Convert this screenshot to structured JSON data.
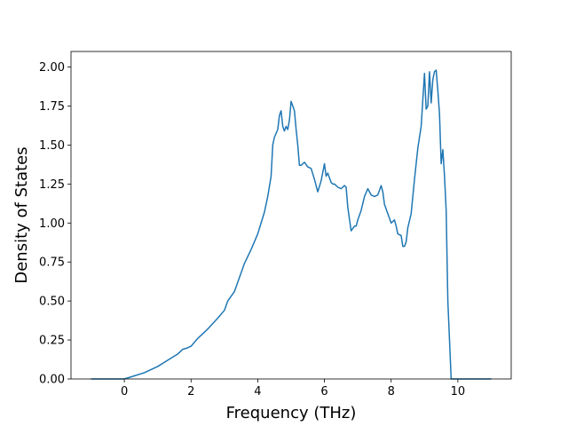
{
  "chart_data": {
    "type": "line",
    "title": "",
    "xlabel": "Frequency (THz)",
    "ylabel": "Density of States",
    "xlim": [
      -1.6,
      11.6
    ],
    "ylim": [
      0,
      2.1
    ],
    "x_ticks": [
      0,
      2,
      4,
      6,
      8,
      10
    ],
    "x_tick_labels": [
      "0",
      "2",
      "4",
      "6",
      "8",
      "10"
    ],
    "y_ticks": [
      0,
      0.25,
      0.5,
      0.75,
      1.0,
      1.25,
      1.5,
      1.75,
      2.0
    ],
    "y_tick_labels": [
      "0.00",
      "0.25",
      "0.50",
      "0.75",
      "1.00",
      "1.25",
      "1.50",
      "1.75",
      "2.00"
    ],
    "grid": false,
    "legend": "none",
    "line_color": "#1f77b4",
    "series": [
      {
        "x": [
          -1.0,
          0.0,
          0.3,
          0.6,
          1.0,
          1.3,
          1.6,
          1.75,
          1.9,
          2.0,
          2.2,
          2.5,
          2.8,
          3.0,
          3.1,
          3.3,
          3.4,
          3.6,
          3.8,
          4.0,
          4.2,
          4.3,
          4.4,
          4.45,
          4.5,
          4.6,
          4.65,
          4.7,
          4.75,
          4.8,
          4.85,
          4.9,
          4.95,
          5.0,
          5.1,
          5.15,
          5.2,
          5.25,
          5.3,
          5.4,
          5.5,
          5.6,
          5.7,
          5.8,
          5.9,
          6.0,
          6.05,
          6.1,
          6.2,
          6.25,
          6.3,
          6.4,
          6.5,
          6.6,
          6.65,
          6.7,
          6.8,
          6.9,
          6.95,
          7.0,
          7.1,
          7.2,
          7.3,
          7.4,
          7.5,
          7.6,
          7.7,
          7.75,
          7.8,
          7.9,
          8.0,
          8.1,
          8.15,
          8.2,
          8.3,
          8.35,
          8.4,
          8.45,
          8.5,
          8.6,
          8.7,
          8.8,
          8.9,
          9.0,
          9.05,
          9.1,
          9.15,
          9.2,
          9.25,
          9.3,
          9.35,
          9.4,
          9.45,
          9.5,
          9.55,
          9.6,
          9.65,
          9.7,
          9.8,
          9.9,
          9.98,
          10.0,
          10.5,
          11.0
        ],
        "y": [
          0.0,
          0.0,
          0.02,
          0.04,
          0.08,
          0.12,
          0.16,
          0.19,
          0.2,
          0.21,
          0.26,
          0.32,
          0.39,
          0.44,
          0.5,
          0.56,
          0.62,
          0.74,
          0.83,
          0.93,
          1.07,
          1.17,
          1.3,
          1.5,
          1.55,
          1.6,
          1.69,
          1.72,
          1.62,
          1.59,
          1.62,
          1.6,
          1.66,
          1.78,
          1.72,
          1.6,
          1.5,
          1.37,
          1.37,
          1.39,
          1.36,
          1.35,
          1.28,
          1.2,
          1.27,
          1.38,
          1.3,
          1.32,
          1.26,
          1.25,
          1.25,
          1.23,
          1.22,
          1.24,
          1.23,
          1.1,
          0.95,
          0.98,
          0.98,
          1.02,
          1.08,
          1.17,
          1.22,
          1.18,
          1.17,
          1.18,
          1.24,
          1.2,
          1.12,
          1.06,
          1.0,
          1.02,
          0.98,
          0.93,
          0.92,
          0.85,
          0.85,
          0.88,
          0.97,
          1.06,
          1.28,
          1.48,
          1.62,
          1.96,
          1.73,
          1.75,
          1.97,
          1.77,
          1.92,
          1.97,
          1.98,
          1.85,
          1.7,
          1.38,
          1.47,
          1.3,
          1.08,
          0.5,
          0.0,
          0.0,
          0.0,
          0.0,
          0.0,
          0.0
        ]
      }
    ]
  }
}
